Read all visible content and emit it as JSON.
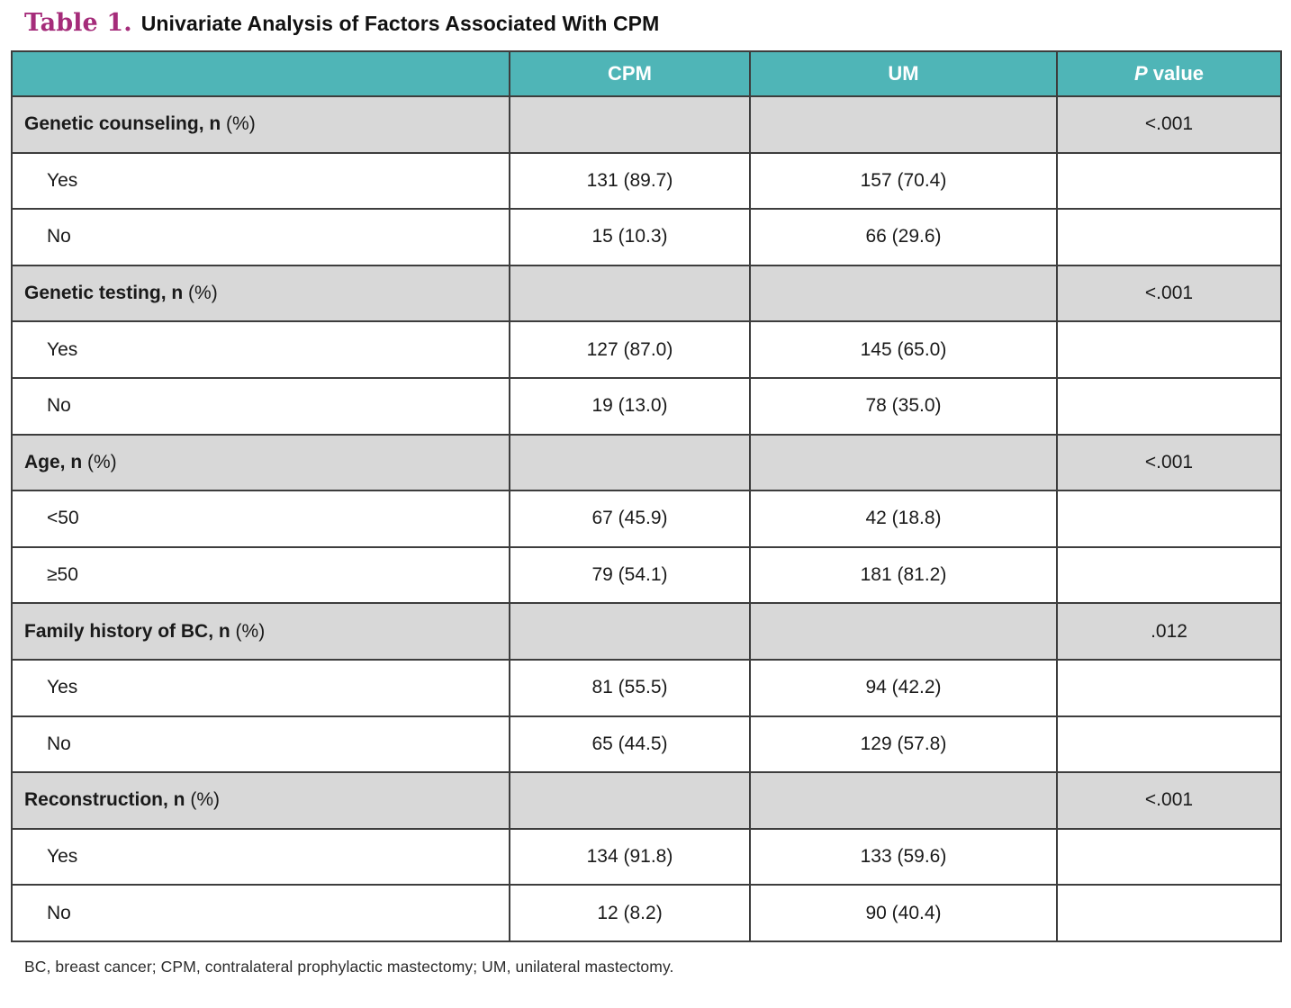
{
  "page": {
    "title_prefix": "Table 1.",
    "title_text": "Univariate Analysis of Factors Associated With CPM",
    "footnote": "BC, breast cancer; CPM, contralateral prophylactic mastectomy; UM, unilateral mastectomy."
  },
  "colors": {
    "header_bg": "#4fb5b7",
    "header_text": "#ffffff",
    "category_bg": "#d8d8d8",
    "row_bg": "#ffffff",
    "border": "#3d3d3d",
    "title_accent": "#a52c7a",
    "text": "#1a1a1a"
  },
  "table": {
    "header": {
      "factor": "",
      "cpm": "CPM",
      "um": "UM",
      "p_italic": "P",
      "p_rest": " value"
    },
    "sections": [
      {
        "label_bold": "Genetic counseling, n",
        "label_suffix": " (%)",
        "p_value": "<.001",
        "rows": [
          {
            "label": "Yes",
            "cpm": "131 (89.7)",
            "um": "157 (70.4)"
          },
          {
            "label": "No",
            "cpm": "15 (10.3)",
            "um": "66 (29.6)"
          }
        ]
      },
      {
        "label_bold": "Genetic testing, n",
        "label_suffix": " (%)",
        "p_value": "<.001",
        "rows": [
          {
            "label": "Yes",
            "cpm": "127 (87.0)",
            "um": "145 (65.0)"
          },
          {
            "label": "No",
            "cpm": "19 (13.0)",
            "um": "78 (35.0)"
          }
        ]
      },
      {
        "label_bold": "Age, n",
        "label_suffix": " (%)",
        "p_value": "<.001",
        "rows": [
          {
            "label": "<50",
            "cpm": "67 (45.9)",
            "um": "42 (18.8)"
          },
          {
            "label": "≥50",
            "cpm": "79 (54.1)",
            "um": "181 (81.2)"
          }
        ]
      },
      {
        "label_bold": "Family history of BC, n",
        "label_suffix": " (%)",
        "p_value": ".012",
        "rows": [
          {
            "label": "Yes",
            "cpm": "81 (55.5)",
            "um": "94 (42.2)"
          },
          {
            "label": "No",
            "cpm": "65 (44.5)",
            "um": "129 (57.8)"
          }
        ]
      },
      {
        "label_bold": "Reconstruction, n",
        "label_suffix": " (%)",
        "p_value": "<.001",
        "rows": [
          {
            "label": "Yes",
            "cpm": "134 (91.8)",
            "um": "133 (59.6)"
          },
          {
            "label": "No",
            "cpm": "12 (8.2)",
            "um": "90 (40.4)"
          }
        ]
      }
    ]
  }
}
